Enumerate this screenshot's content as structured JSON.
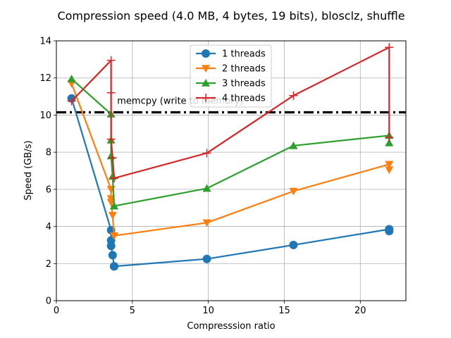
{
  "chart_data": {
    "type": "line",
    "title": "Compression speed (4.0 MB, 4 bytes, 19 bits), blosclz, shuffle",
    "xlabel": "Compresssion ratio",
    "ylabel": "Speed (GB/s)",
    "xlim": [
      0,
      23
    ],
    "ylim": [
      0,
      14
    ],
    "xticks": [
      0,
      5,
      10,
      15,
      20
    ],
    "yticks": [
      0,
      2,
      4,
      6,
      8,
      10,
      12,
      14
    ],
    "grid": true,
    "legend_position": "top-center",
    "reference_line": {
      "label": "memcpy (write to memory)",
      "y": 10.15,
      "color": "#000000",
      "style": "dashdot"
    },
    "series": [
      {
        "name": "1 threads",
        "color": "#1f77b4",
        "marker": "circle",
        "x": [
          1.0,
          3.6,
          3.6,
          3.6,
          3.7,
          3.8,
          3.8,
          9.9,
          15.6,
          21.9,
          21.9
        ],
        "y": [
          10.9,
          3.8,
          3.25,
          2.95,
          2.45,
          1.85,
          1.85,
          2.25,
          3.0,
          3.85,
          3.75
        ]
      },
      {
        "name": "2 threads",
        "color": "#ff7f0e",
        "marker": "triangle-down",
        "x": [
          1.0,
          3.6,
          3.6,
          3.6,
          3.7,
          3.8,
          3.8,
          9.9,
          15.6,
          21.9,
          21.9
        ],
        "y": [
          11.7,
          6.0,
          5.5,
          5.3,
          4.6,
          3.5,
          3.5,
          4.2,
          5.9,
          7.35,
          7.05
        ]
      },
      {
        "name": "3 threads",
        "color": "#2ca02c",
        "marker": "triangle-up",
        "x": [
          1.0,
          3.6,
          3.6,
          3.6,
          3.7,
          3.8,
          3.8,
          9.9,
          15.6,
          21.9,
          21.9
        ],
        "y": [
          11.95,
          10.05,
          8.65,
          7.8,
          6.7,
          5.1,
          5.1,
          6.05,
          8.35,
          8.9,
          8.5
        ]
      },
      {
        "name": "4 threads",
        "color": "#d62728",
        "marker": "plus",
        "x": [
          1.0,
          3.6,
          3.6,
          3.6,
          3.7,
          3.8,
          3.8,
          9.9,
          15.6,
          21.9,
          21.9
        ],
        "y": [
          10.75,
          12.95,
          11.2,
          8.7,
          7.7,
          6.6,
          6.6,
          7.95,
          11.05,
          13.65,
          8.8
        ]
      }
    ]
  }
}
